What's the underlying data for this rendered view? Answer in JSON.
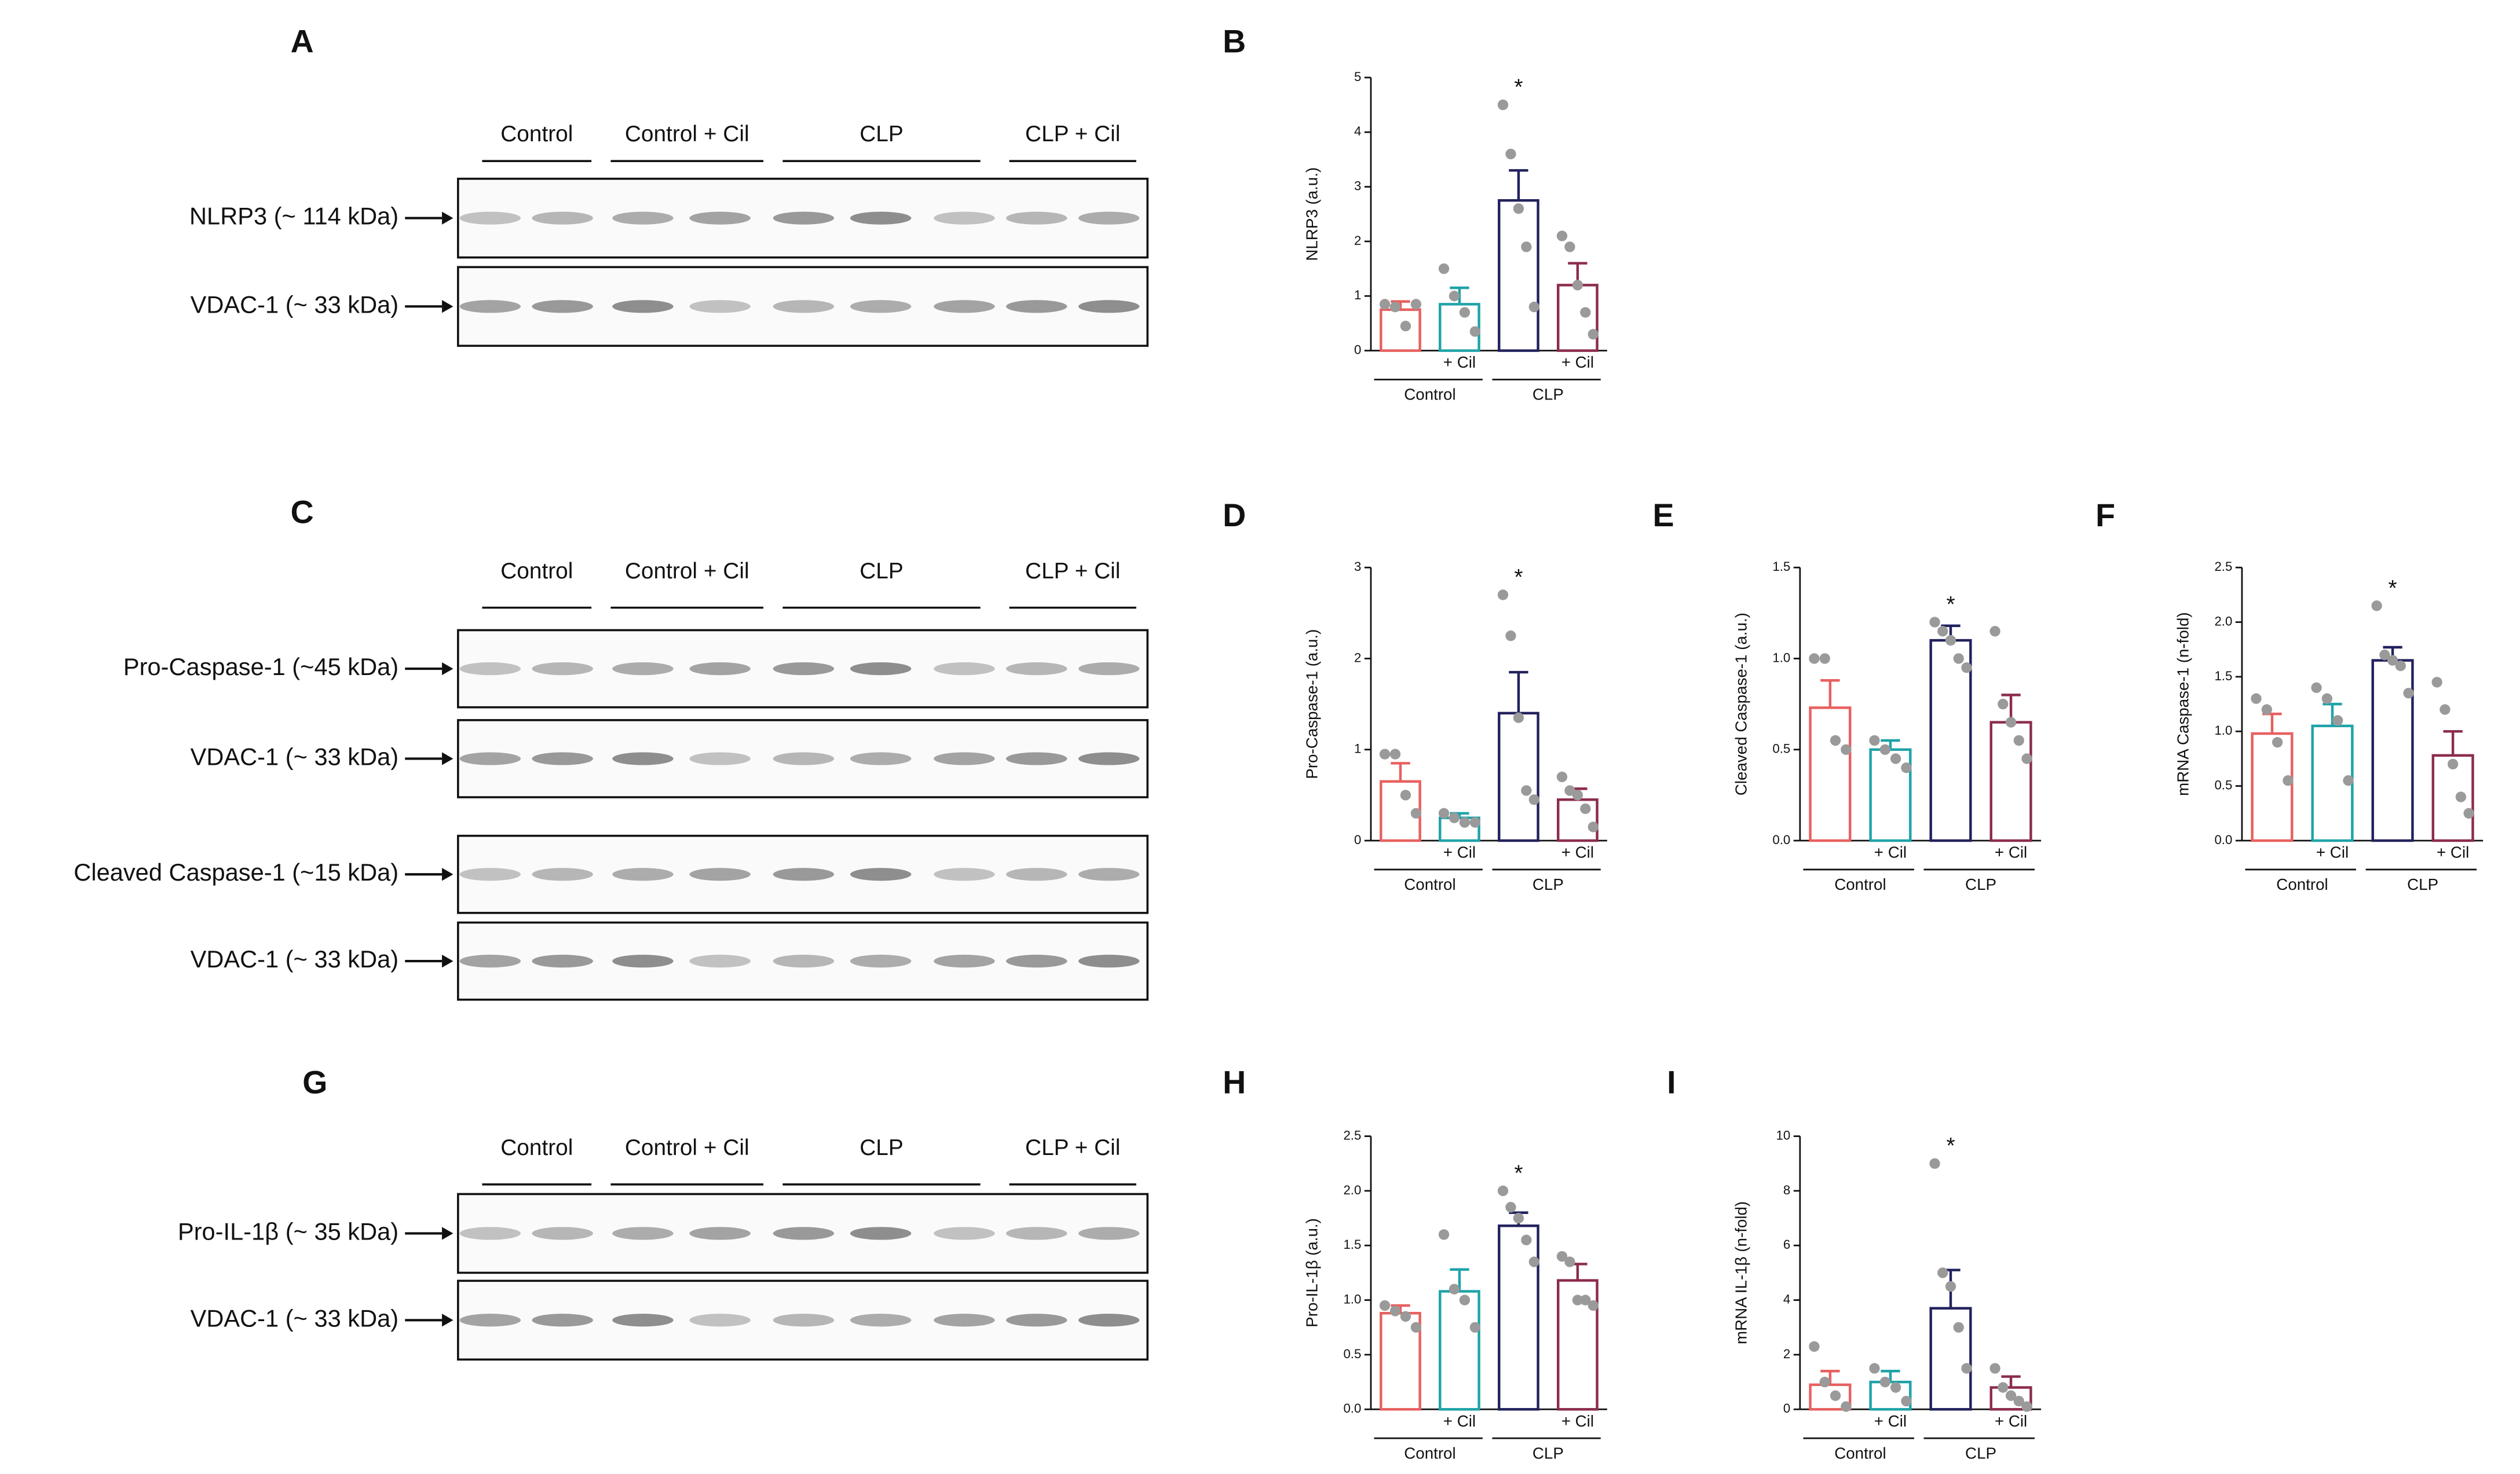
{
  "blots": [
    {
      "label": "A",
      "groups": [
        "Control",
        "Control + Cil",
        "CLP",
        "CLP + Cil"
      ],
      "rows": [
        "NLRP3 (~ 114  kDa)",
        "VDAC-1 (~ 33 kDa)"
      ]
    },
    {
      "label": "C",
      "groups": [
        "Control",
        "Control + Cil",
        "CLP",
        "CLP + Cil"
      ],
      "rows": [
        "Pro-Caspase-1 (~45  kDa)",
        "VDAC-1 (~ 33 kDa)",
        "Cleaved Caspase-1 (~15  kDa)",
        "VDAC-1 (~ 33 kDa)"
      ]
    },
    {
      "label": "G",
      "groups": [
        "Control",
        "Control + Cil",
        "CLP",
        "CLP + Cil"
      ],
      "rows": [
        "Pro-IL-1β (~ 35 kDa)",
        "VDAC-1 (~ 33 kDa)"
      ]
    }
  ],
  "chart_data": [
    {
      "type": "bar",
      "label": "B",
      "ylabel": "NLRP3 (a.u.)",
      "categories": [
        null,
        "+ Cil",
        null,
        "+ Cil"
      ],
      "groups": [
        "Control",
        "CLP"
      ],
      "colors": [
        "#e8605f",
        "#1fa3a8",
        "#22225e",
        "#8c2c4c"
      ],
      "values": [
        0.75,
        0.85,
        2.75,
        1.2
      ],
      "errors": [
        0.15,
        0.3,
        0.55,
        0.4
      ],
      "points": [
        [
          0.85,
          0.8,
          0.45,
          0.85
        ],
        [
          1.5,
          1.0,
          0.7,
          0.35
        ],
        [
          4.5,
          3.6,
          2.6,
          1.9,
          0.8
        ],
        [
          2.1,
          1.9,
          1.2,
          0.7,
          0.3
        ]
      ],
      "significance_labels": [
        null,
        null,
        "*",
        null
      ],
      "ylim": [
        0,
        5
      ],
      "yticks": [
        0,
        1,
        2,
        3,
        4,
        5
      ]
    },
    {
      "type": "bar",
      "label": "D",
      "ylabel": "Pro-Caspase-1 (a.u.)",
      "categories": [
        null,
        "+ Cil",
        null,
        "+ Cil"
      ],
      "groups": [
        "Control",
        "CLP"
      ],
      "colors": [
        "#e8605f",
        "#1fa3a8",
        "#22225e",
        "#8c2c4c"
      ],
      "values": [
        0.65,
        0.25,
        1.4,
        0.45
      ],
      "errors": [
        0.2,
        0.05,
        0.45,
        0.12
      ],
      "points": [
        [
          0.95,
          0.95,
          0.5,
          0.3
        ],
        [
          0.3,
          0.25,
          0.2,
          0.2
        ],
        [
          2.7,
          2.25,
          1.35,
          0.55,
          0.45
        ],
        [
          0.7,
          0.55,
          0.5,
          0.35,
          0.15
        ]
      ],
      "significance_labels": [
        null,
        null,
        "*",
        null
      ],
      "ylim": [
        0,
        3
      ],
      "yticks": [
        0,
        1,
        2,
        3
      ]
    },
    {
      "type": "bar",
      "label": "E",
      "ylabel": "Cleaved Caspase-1 (a.u.)",
      "categories": [
        null,
        "+ Cil",
        null,
        "+ Cil"
      ],
      "groups": [
        "Control",
        "CLP"
      ],
      "colors": [
        "#e8605f",
        "#1fa3a8",
        "#22225e",
        "#8c2c4c"
      ],
      "values": [
        0.73,
        0.5,
        1.1,
        0.65
      ],
      "errors": [
        0.15,
        0.05,
        0.08,
        0.15
      ],
      "points": [
        [
          1.0,
          1.0,
          0.55,
          0.5
        ],
        [
          0.55,
          0.5,
          0.45,
          0.4
        ],
        [
          1.2,
          1.15,
          1.1,
          1.0,
          0.95
        ],
        [
          1.15,
          0.75,
          0.65,
          0.55,
          0.45
        ]
      ],
      "significance_labels": [
        null,
        null,
        "*",
        null
      ],
      "ylim": [
        0,
        1.5
      ],
      "yticks": [
        {
          "value": 0,
          "label": "0.0"
        },
        0.5,
        {
          "value": 1,
          "label": "1.0"
        },
        1.5
      ]
    },
    {
      "type": "bar",
      "label": "F",
      "ylabel": "mRNA Caspase-1 (n-fold)",
      "categories": [
        null,
        "+ Cil",
        null,
        "+ Cil"
      ],
      "groups": [
        "Control",
        "CLP"
      ],
      "colors": [
        "#e8605f",
        "#1fa3a8",
        "#22225e",
        "#8c2c4c"
      ],
      "values": [
        0.98,
        1.05,
        1.65,
        0.78
      ],
      "errors": [
        0.18,
        0.2,
        0.12,
        0.22
      ],
      "points": [
        [
          1.3,
          1.2,
          0.9,
          0.55
        ],
        [
          1.4,
          1.3,
          1.1,
          0.55
        ],
        [
          2.15,
          1.7,
          1.65,
          1.6,
          1.35
        ],
        [
          1.45,
          1.2,
          0.7,
          0.4,
          0.25
        ]
      ],
      "significance_labels": [
        null,
        null,
        "*",
        null
      ],
      "ylim": [
        0,
        2.5
      ],
      "yticks": [
        {
          "value": 0,
          "label": "0.0"
        },
        0.5,
        {
          "value": 1,
          "label": "1.0"
        },
        1.5,
        {
          "value": 2,
          "label": "2.0"
        },
        2.5
      ]
    },
    {
      "type": "bar",
      "label": "H",
      "ylabel": "Pro-IL-1β (a.u.)",
      "categories": [
        null,
        "+ Cil",
        null,
        "+ Cil"
      ],
      "groups": [
        "Control",
        "CLP"
      ],
      "colors": [
        "#e8605f",
        "#1fa3a8",
        "#22225e",
        "#8c2c4c"
      ],
      "values": [
        0.88,
        1.08,
        1.68,
        1.18
      ],
      "errors": [
        0.07,
        0.2,
        0.12,
        0.15
      ],
      "points": [
        [
          0.95,
          0.9,
          0.85,
          0.75
        ],
        [
          1.6,
          1.1,
          1.0,
          0.75
        ],
        [
          2.0,
          1.85,
          1.75,
          1.55,
          1.35
        ],
        [
          1.4,
          1.35,
          1.0,
          1.0,
          0.95
        ]
      ],
      "significance_labels": [
        null,
        null,
        "*",
        null
      ],
      "ylim": [
        0,
        2.5
      ],
      "yticks": [
        {
          "value": 0,
          "label": "0.0"
        },
        0.5,
        {
          "value": 1,
          "label": "1.0"
        },
        1.5,
        {
          "value": 2,
          "label": "2.0"
        },
        2.5
      ]
    },
    {
      "type": "bar",
      "label": "I",
      "ylabel": "mRNA IL-1β (n-fold)",
      "categories": [
        null,
        "+ Cil",
        null,
        "+ Cil"
      ],
      "groups": [
        "Control",
        "CLP"
      ],
      "colors": [
        "#e8605f",
        "#1fa3a8",
        "#22225e",
        "#8c2c4c"
      ],
      "values": [
        0.9,
        1.0,
        3.7,
        0.8
      ],
      "errors": [
        0.5,
        0.4,
        1.4,
        0.4
      ],
      "points": [
        [
          2.3,
          1.0,
          0.5,
          0.1
        ],
        [
          1.5,
          1.0,
          0.8,
          0.3
        ],
        [
          9.0,
          5.0,
          4.5,
          3.0,
          1.5
        ],
        [
          1.5,
          0.8,
          0.5,
          0.3,
          0.1
        ]
      ],
      "significance_labels": [
        null,
        null,
        "*",
        null
      ],
      "ylim": [
        0,
        10
      ],
      "yticks": [
        0,
        2,
        4,
        6,
        8,
        10
      ]
    }
  ]
}
